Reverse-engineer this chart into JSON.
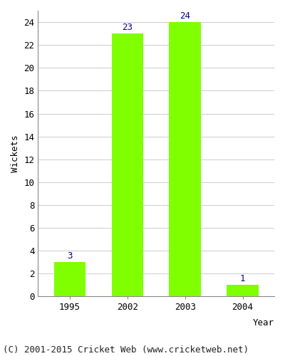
{
  "categories": [
    "1995",
    "2002",
    "2003",
    "2004"
  ],
  "values": [
    3,
    23,
    24,
    1
  ],
  "bar_color": "#7fff00",
  "bar_edge_color": "#7fff00",
  "label_color": "#00008b",
  "ylabel": "Wickets",
  "xlabel": "Year",
  "ylim": [
    0,
    25
  ],
  "yticks": [
    0,
    2,
    4,
    6,
    8,
    10,
    12,
    14,
    16,
    18,
    20,
    22,
    24
  ],
  "grid_color": "#cccccc",
  "bg_color": "#ffffff",
  "footer": "(C) 2001-2015 Cricket Web (www.cricketweb.net)",
  "label_fontsize": 9,
  "axis_fontsize": 9,
  "footer_fontsize": 9,
  "bar_width": 0.55
}
